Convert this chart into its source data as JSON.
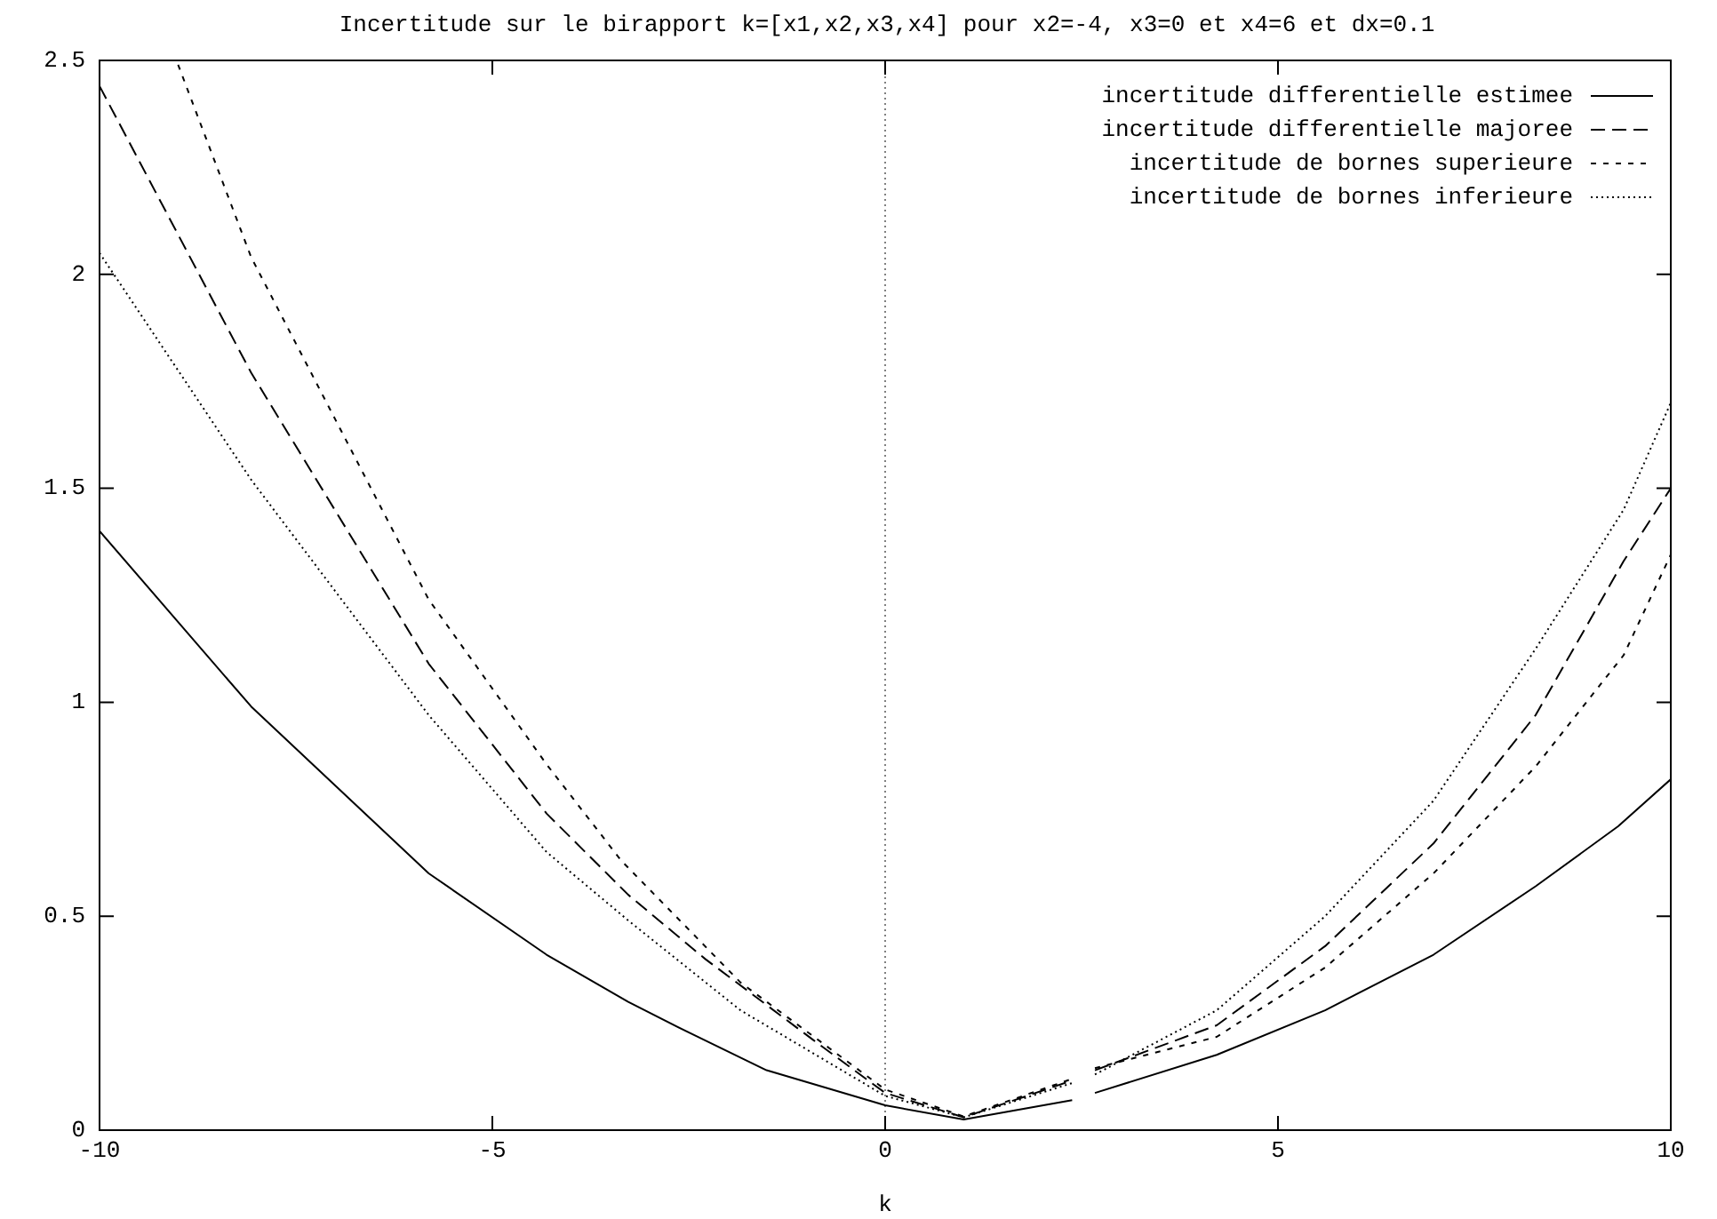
{
  "chart_data": {
    "type": "line",
    "title": "Incertitude sur le birapport k=[x1,x2,x3,x4] pour x2=-4, x3=0 et x4=6 et dx=0.1",
    "xlabel": "k",
    "xlim": [
      -10,
      10
    ],
    "xticks": [
      -10,
      -5,
      0,
      5,
      10
    ],
    "ylim": [
      0,
      2.5
    ],
    "yticks": [
      0,
      0.5,
      1,
      1.5,
      2,
      2.5
    ],
    "grid": false,
    "legend": "top right",
    "marker": "none",
    "ref_lines": [
      {
        "axis": "x",
        "value": 0,
        "color": "#808080",
        "line_style": "dotted"
      }
    ],
    "series": [
      {
        "name": "incertitude differentielle estimee",
        "color": "#000000",
        "line_style": "solid",
        "x": [
          -10,
          -8.07,
          -5.81,
          -4.31,
          -3.27,
          -2.52,
          -1.51,
          0,
          1,
          2.38,
          2.5,
          2.67,
          4.22,
          5.6,
          6.98,
          8.28,
          9.33,
          10
        ],
        "values": [
          1.4,
          0.99,
          0.6,
          0.41,
          0.3,
          0.23,
          0.14,
          0.058,
          0.025,
          0.07,
          null,
          0.087,
          0.176,
          0.28,
          0.41,
          0.57,
          0.71,
          0.82
        ]
      },
      {
        "name": "incertitude differentielle majoree",
        "color": "#000000",
        "line_style": "dashed",
        "x": [
          -10,
          -8.07,
          -5.81,
          -4.31,
          -3.27,
          -2.29,
          -0.91,
          0,
          1,
          2.38,
          2.5,
          2.67,
          4.22,
          5.6,
          6.98,
          8.28,
          9.4,
          10
        ],
        "values": [
          2.44,
          1.77,
          1.09,
          0.74,
          0.55,
          0.4,
          0.21,
          0.087,
          0.03,
          0.116,
          null,
          0.14,
          0.245,
          0.43,
          0.67,
          0.97,
          1.33,
          1.5
        ]
      },
      {
        "name": "incertitude de bornes superieure",
        "color": "#000000",
        "line_style": "shortdash",
        "x": [
          -9,
          -8.07,
          -5.81,
          -4.31,
          -3.36,
          -1.84,
          0,
          1,
          2.38,
          2.5,
          2.67,
          4.22,
          5.6,
          6.98,
          8.28,
          9.4,
          10
        ],
        "values": [
          2.49,
          2.04,
          1.24,
          0.855,
          0.63,
          0.345,
          0.095,
          0.032,
          0.12,
          null,
          0.145,
          0.218,
          0.38,
          0.6,
          0.85,
          1.11,
          1.345
        ]
      },
      {
        "name": "incertitude de bornes inferieure",
        "color": "#000000",
        "line_style": "dotted",
        "x": [
          -10,
          -8.07,
          -5.81,
          -4.31,
          -3.27,
          -1.84,
          0,
          1,
          2.38,
          2.5,
          2.67,
          4.22,
          5.6,
          6.98,
          8.28,
          9.4,
          10
        ],
        "values": [
          2.05,
          1.52,
          0.97,
          0.65,
          0.49,
          0.28,
          0.08,
          0.03,
          0.11,
          null,
          0.13,
          0.28,
          0.5,
          0.77,
          1.125,
          1.45,
          1.7
        ]
      }
    ]
  }
}
